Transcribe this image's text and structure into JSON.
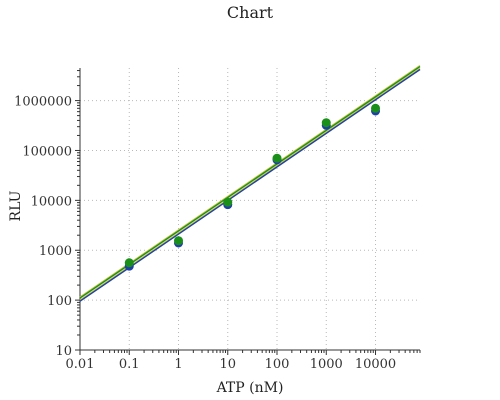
{
  "chart_data": {
    "type": "scatter",
    "title": "Chart",
    "xlabel": "ATP (nM)",
    "ylabel": "RLU",
    "x_scale": "log",
    "y_scale": "log",
    "xlim": [
      0.01,
      80000
    ],
    "ylim": [
      10,
      4500000
    ],
    "x_ticks": [
      {
        "value": 0.01,
        "label": "0.01"
      },
      {
        "value": 0.1,
        "label": "0.1"
      },
      {
        "value": 1,
        "label": "1"
      },
      {
        "value": 10,
        "label": "10"
      },
      {
        "value": 100,
        "label": "100"
      },
      {
        "value": 1000,
        "label": "1000"
      },
      {
        "value": 10000,
        "label": "10000"
      }
    ],
    "y_ticks": [
      {
        "value": 10,
        "label": "10"
      },
      {
        "value": 100,
        "label": "100"
      },
      {
        "value": 1000,
        "label": "1000"
      },
      {
        "value": 10000,
        "label": "10000"
      },
      {
        "value": 100000,
        "label": "100000"
      },
      {
        "value": 1000000,
        "label": "1000000"
      }
    ],
    "grid": true,
    "legend": "none",
    "series": [
      {
        "color": "#1f3fa8",
        "points": [
          {
            "x": 0.1,
            "y": 480
          },
          {
            "x": 1,
            "y": 1400
          },
          {
            "x": 10,
            "y": 8200
          },
          {
            "x": 100,
            "y": 65000
          },
          {
            "x": 1000,
            "y": 320000
          },
          {
            "x": 10000,
            "y": 620000
          }
        ],
        "fit": {
          "x": [
            0.01,
            80000
          ],
          "y": [
            95,
            4200000
          ]
        }
      },
      {
        "color": "#1a8f1a",
        "points": [
          {
            "x": 0.1,
            "y": 560
          },
          {
            "x": 1,
            "y": 1550
          },
          {
            "x": 10,
            "y": 9200
          },
          {
            "x": 100,
            "y": 70000
          },
          {
            "x": 1000,
            "y": 360000
          },
          {
            "x": 10000,
            "y": 700000
          }
        ],
        "fit": {
          "x": [
            0.01,
            80000
          ],
          "y": [
            110,
            4800000
          ]
        }
      }
    ],
    "fit_line_color": "#c9c23a"
  }
}
